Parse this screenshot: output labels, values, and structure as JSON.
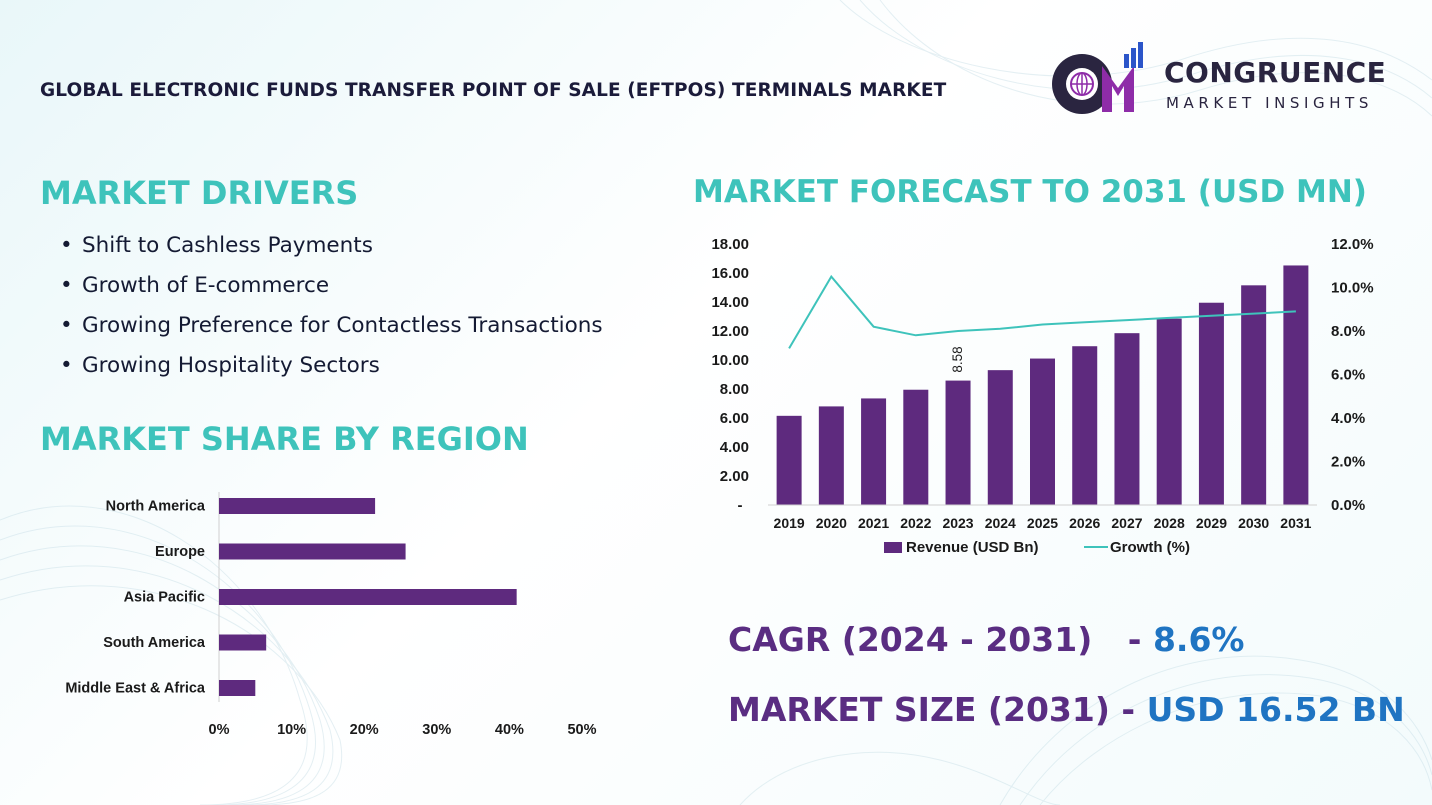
{
  "title": "GLOBAL ELECTRONIC FUNDS TRANSFER POINT OF SALE (EFTPOS) TERMINALS MARKET",
  "brand": {
    "name": "CONGRUENCE",
    "tagline": "MARKET INSIGHTS",
    "mark_letters": "CM",
    "colors": {
      "dark": "#2a2540",
      "purple": "#8e2ca8",
      "blue": "#2b55c9"
    }
  },
  "colors": {
    "heading": "#3ec3bb",
    "bar": "#5e2a7e",
    "line": "#3ec3bb",
    "kpi_label": "#5a2d82",
    "kpi_value": "#1f74c2"
  },
  "drivers": {
    "heading": "MARKET DRIVERS",
    "bullet": "•",
    "items": [
      "Shift to Cashless Payments",
      "Growth of E-commerce",
      "Growing Preference for Contactless Transactions",
      "Growing Hospitality Sectors"
    ]
  },
  "region": {
    "heading": "MARKET SHARE BY REGION"
  },
  "forecast": {
    "heading": "MARKET FORECAST TO 2031 (USD MN)"
  },
  "kpis": {
    "cagr_label": "CAGR (2024 - 2031)",
    "cagr_sep": " - ",
    "cagr_value": "8.6%",
    "size_label": "MARKET SIZE (2031)",
    "size_sep": " - ",
    "size_value": "USD 16.52 BN"
  },
  "chart_data": [
    {
      "type": "bar",
      "orientation": "horizontal",
      "categories": [
        "North America",
        "Europe",
        "Asia Pacific",
        "South America",
        "Middle East & Africa"
      ],
      "values": [
        21.5,
        25.7,
        41.0,
        6.5,
        5.0
      ],
      "unit": "%",
      "xlim": [
        0,
        50
      ],
      "xticks": [
        "0%",
        "10%",
        "20%",
        "30%",
        "40%",
        "50%"
      ],
      "grid": false
    },
    {
      "type": "bar",
      "categories": [
        "2019",
        "2020",
        "2021",
        "2022",
        "2023",
        "2024",
        "2025",
        "2026",
        "2027",
        "2028",
        "2029",
        "2030",
        "2031"
      ],
      "series": [
        {
          "name": "Revenue (USD Bn)",
          "type": "bar",
          "axis": "left",
          "values": [
            6.15,
            6.8,
            7.35,
            7.95,
            8.58,
            9.3,
            10.1,
            10.95,
            11.85,
            12.85,
            13.95,
            15.15,
            16.52
          ]
        },
        {
          "name": "Growth (%)",
          "type": "line",
          "axis": "right",
          "values": [
            7.2,
            10.5,
            8.2,
            7.8,
            8.0,
            8.1,
            8.3,
            8.4,
            8.5,
            8.6,
            8.7,
            8.8,
            8.9
          ]
        }
      ],
      "data_labels": [
        {
          "category": "2023",
          "text": "8.58"
        }
      ],
      "ylim": [
        0,
        18
      ],
      "yticks_left": [
        "-",
        "2.00",
        "4.00",
        "6.00",
        "8.00",
        "10.00",
        "12.00",
        "14.00",
        "16.00",
        "18.00"
      ],
      "ylim_right": [
        0,
        12
      ],
      "yticks_right": [
        "0.0%",
        "2.0%",
        "4.0%",
        "6.0%",
        "8.0%",
        "10.0%",
        "12.0%"
      ],
      "legend": "bottom",
      "grid": false
    }
  ]
}
